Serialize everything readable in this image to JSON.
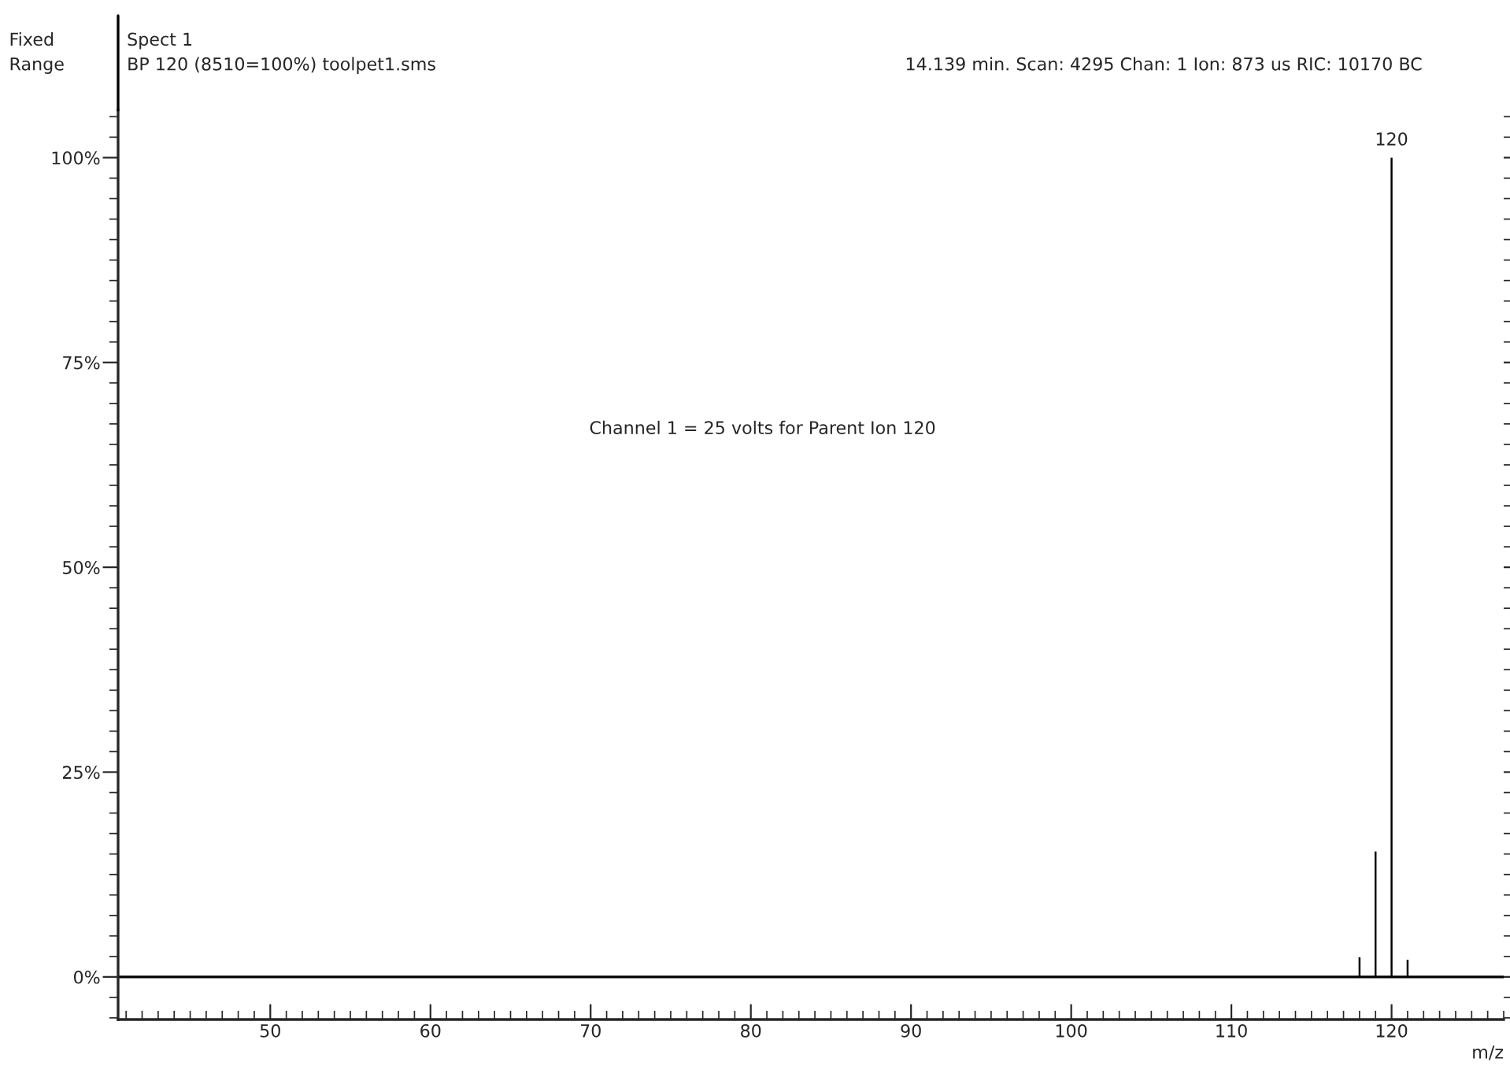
{
  "chart_data": {
    "type": "bar",
    "xlabel": "m/z",
    "x": [
      118,
      119,
      120,
      121
    ],
    "values": [
      2.4,
      15.3,
      100,
      2.1
    ],
    "color": "#000000",
    "xlim": [
      40.5,
      127
    ],
    "ylim": [
      -5.2,
      105.8
    ],
    "xticks": [
      50,
      60,
      70,
      80,
      90,
      100,
      110,
      120
    ],
    "yticks": [
      {
        "value": 0,
        "label": "0%"
      },
      {
        "value": 25,
        "label": "25%"
      },
      {
        "value": 50,
        "label": "50%"
      },
      {
        "value": 75,
        "label": "75%"
      },
      {
        "value": 100,
        "label": "100%"
      }
    ],
    "ref_lines": [
      {
        "axis": "y",
        "value": 0,
        "label": null,
        "color": "#000000"
      }
    ],
    "grid": false,
    "legend": false,
    "tick_labels": true,
    "annotations": [
      "Fixed",
      "Range",
      "Spect 1",
      "BP 120 (8510=100%) toolpet1.sms",
      "14.139 min. Scan: 4295 Chan: 1 Ion: 873 us RIC: 10170 BC",
      "Channel 1 = 25 volts for Parent Ion 120",
      {
        "text": "120",
        "x": 120,
        "y": 100
      }
    ]
  }
}
